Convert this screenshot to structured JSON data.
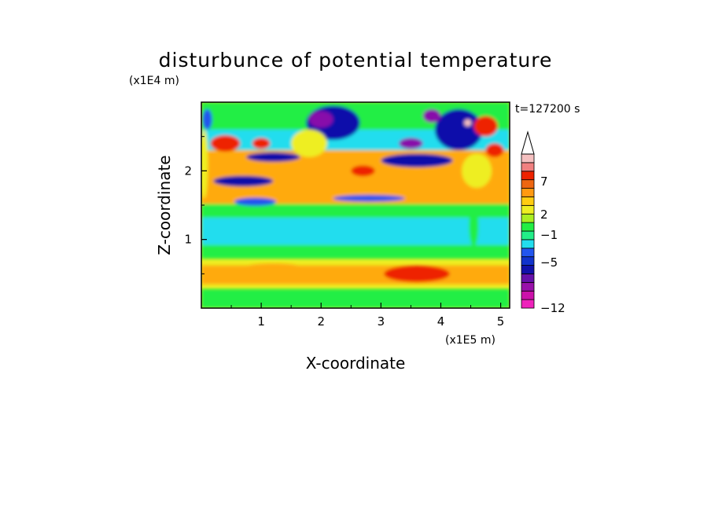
{
  "chart_data": {
    "type": "heatmap",
    "title": "disturbunce of potential temperature",
    "xlabel": "X-coordinate",
    "ylabel": "Z-coordinate",
    "x_scale_label": "(x1E5 m)",
    "y_scale_label": "(x1E4 m)",
    "time_label": "t=127200 s",
    "xlim": [
      0,
      5.15
    ],
    "ylim": [
      0,
      3.0
    ],
    "x_ticks": [
      "1",
      "2",
      "3",
      "4",
      "5"
    ],
    "y_ticks": [
      "1",
      "2"
    ],
    "colorbar": {
      "levels": [
        -12,
        -10,
        -8,
        -6,
        -5,
        -4,
        -3,
        -2,
        -1,
        0,
        1,
        2,
        3,
        4,
        5,
        6,
        7,
        8,
        9
      ],
      "labels": [
        "7",
        "2",
        "−1",
        "−5",
        "−12"
      ],
      "extend": "max"
    }
  },
  "colors": {
    "magenta": "#ee22bb",
    "purple": "#8811aa",
    "navy": "#1111aa",
    "blue": "#2255ee",
    "cyan": "#22ddee",
    "green": "#22ee44",
    "yellow": "#eeee22",
    "orange": "#ffaa11",
    "red": "#ee2200",
    "pink": "#f5c0c0"
  }
}
